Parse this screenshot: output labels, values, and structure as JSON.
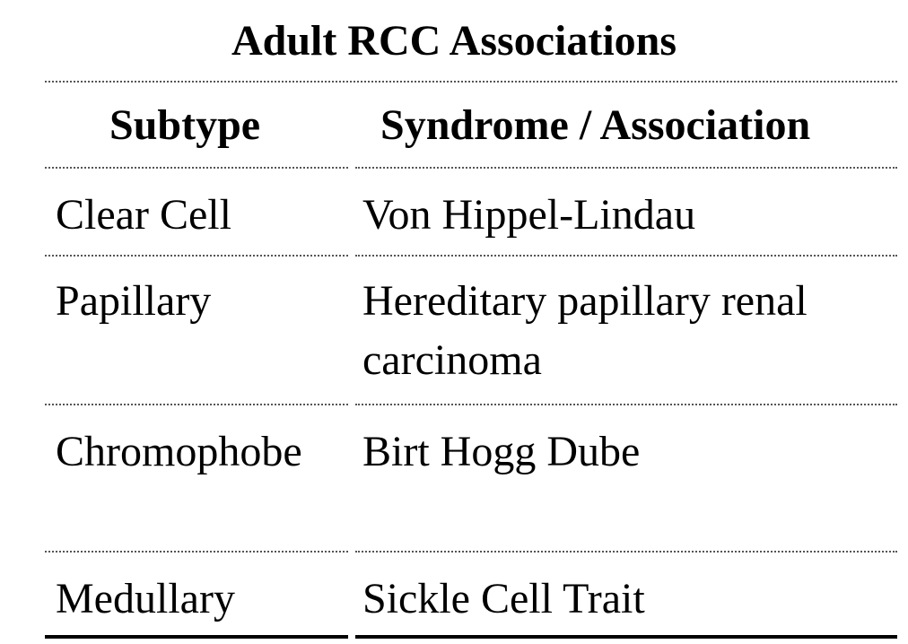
{
  "table": {
    "title": "Adult RCC Associations",
    "headers": [
      "Subtype",
      "Syndrome / Association"
    ],
    "rows": [
      {
        "subtype": "Clear Cell",
        "association": [
          "Von Hippel-Lindau"
        ]
      },
      {
        "subtype": "Papillary",
        "association": [
          "Hereditary papillary renal",
          "carcinoma"
        ]
      },
      {
        "subtype": "Chromophobe",
        "association": [
          "Birt Hogg Dube"
        ]
      },
      {
        "subtype": "Medullary",
        "association": [
          "Sickle Cell Trait"
        ]
      }
    ]
  }
}
